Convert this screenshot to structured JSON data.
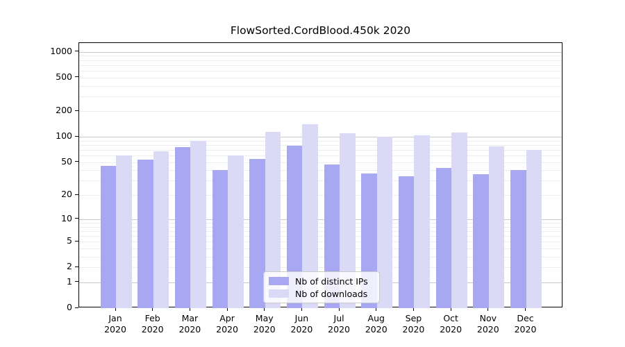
{
  "title": "FlowSorted.CordBlood.450k 2020",
  "chart_data": {
    "type": "bar",
    "title": "FlowSorted.CordBlood.450k 2020",
    "categories": [
      "Jan",
      "Feb",
      "Mar",
      "Apr",
      "May",
      "Jun",
      "Jul",
      "Aug",
      "Sep",
      "Oct",
      "Nov",
      "Dec"
    ],
    "x_year_label": "2020",
    "series": [
      {
        "name": "Nb of distinct IPs",
        "color": "#a8a8f2",
        "values": [
          45,
          54,
          75,
          40,
          55,
          78,
          47,
          37,
          34,
          43,
          36,
          40
        ]
      },
      {
        "name": "Nb of downloads",
        "color": "#dadaf7",
        "values": [
          60,
          68,
          90,
          60,
          115,
          140,
          110,
          100,
          105,
          112,
          77,
          70
        ]
      }
    ],
    "y_ticks": [
      0,
      1,
      2,
      5,
      10,
      20,
      50,
      100,
      200,
      500,
      1000
    ],
    "y_axis_scale": "log10(value+1)",
    "ylim": [
      0,
      1000
    ],
    "xlabel": "",
    "ylabel": "",
    "grid": "horizontal minor+major",
    "legend_position": "inside bottom-center"
  },
  "colors": {
    "bar_ips": "#a8a8f2",
    "bar_downloads": "#dadaf7",
    "grid_major": "#c8c8c8",
    "grid_minor": "#ededed",
    "axis": "#000000",
    "legend_border": "#c9c9c9"
  }
}
